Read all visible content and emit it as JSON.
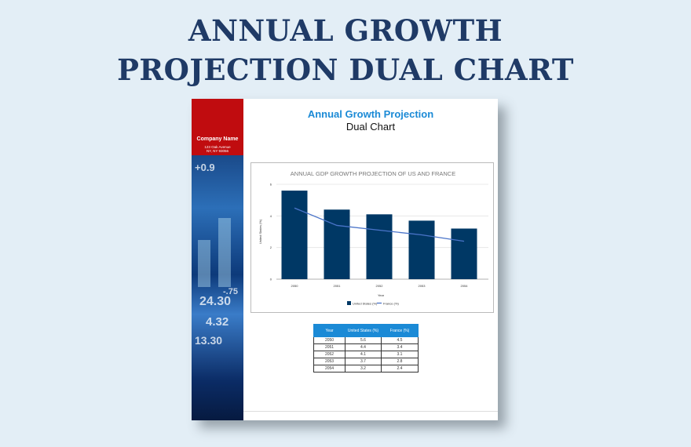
{
  "page_title_line1": "ANNUAL GROWTH",
  "page_title_line2": "PROJECTION DUAL CHART",
  "sidebar": {
    "company": "Company Name",
    "address1": "123 Oak Avenue",
    "address2": "NY, NY 93056",
    "image_numbers": [
      "+0.9",
      "24.30",
      "4.32",
      "13.30",
      "-.75"
    ]
  },
  "doc": {
    "title": "Annual Growth Projection",
    "subtitle": "Dual Chart"
  },
  "colors": {
    "bar": "#003865",
    "line": "#4a74c9",
    "accent": "#1b8ad6",
    "red": "#c00c0f"
  },
  "chart_data": {
    "type": "bar",
    "title": "ANNUAL GDP GROWTH PROJECTION OF US AND FRANCE",
    "xlabel": "Year",
    "ylabel": "United States (%)",
    "categories": [
      "2050",
      "2051",
      "2052",
      "2053",
      "2054"
    ],
    "series": [
      {
        "name": "United States (%)",
        "kind": "bar",
        "values": [
          5.6,
          4.4,
          4.1,
          3.7,
          3.2
        ]
      },
      {
        "name": "France (%)",
        "kind": "line",
        "values": [
          4.5,
          3.4,
          3.1,
          2.8,
          2.4
        ]
      }
    ],
    "yticks": [
      "0",
      "2",
      "4",
      "6"
    ],
    "ylim": [
      0,
      6
    ],
    "grid": true,
    "legend": "bottom"
  },
  "table": {
    "headers": [
      "Year",
      "United States (%)",
      "France (%)"
    ],
    "rows": [
      [
        "2050",
        "5.6",
        "4.5"
      ],
      [
        "2051",
        "4.4",
        "3.4"
      ],
      [
        "2052",
        "4.1",
        "3.1"
      ],
      [
        "2053",
        "3.7",
        "2.8"
      ],
      [
        "2054",
        "3.2",
        "2.4"
      ]
    ]
  }
}
